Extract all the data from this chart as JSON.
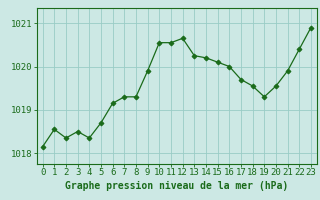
{
  "x": [
    0,
    1,
    2,
    3,
    4,
    5,
    6,
    7,
    8,
    9,
    10,
    11,
    12,
    13,
    14,
    15,
    16,
    17,
    18,
    19,
    20,
    21,
    22,
    23
  ],
  "y": [
    1018.15,
    1018.55,
    1018.35,
    1018.5,
    1018.35,
    1018.7,
    1019.15,
    1019.3,
    1019.3,
    1019.9,
    1020.55,
    1020.55,
    1020.65,
    1020.25,
    1020.2,
    1020.1,
    1020.0,
    1019.7,
    1019.55,
    1019.3,
    1019.55,
    1019.9,
    1020.4,
    1020.9
  ],
  "line_color": "#1a6b1a",
  "marker_color": "#1a6b1a",
  "bg_color": "#cce8e4",
  "grid_color": "#99ccc6",
  "axis_label_color": "#1a6b1a",
  "tick_label_color": "#1a6b1a",
  "ylabel_ticks": [
    1018,
    1019,
    1020,
    1021
  ],
  "ylim": [
    1017.75,
    1021.35
  ],
  "xlim": [
    -0.5,
    23.5
  ],
  "xlabel": "Graphe pression niveau de la mer (hPa)",
  "xtick_labels": [
    "0",
    "1",
    "2",
    "3",
    "4",
    "5",
    "6",
    "7",
    "8",
    "9",
    "10",
    "11",
    "12",
    "13",
    "14",
    "15",
    "16",
    "17",
    "18",
    "19",
    "20",
    "21",
    "22",
    "23"
  ],
  "font_size_xlabel": 7.0,
  "font_size_ticks": 6.5
}
